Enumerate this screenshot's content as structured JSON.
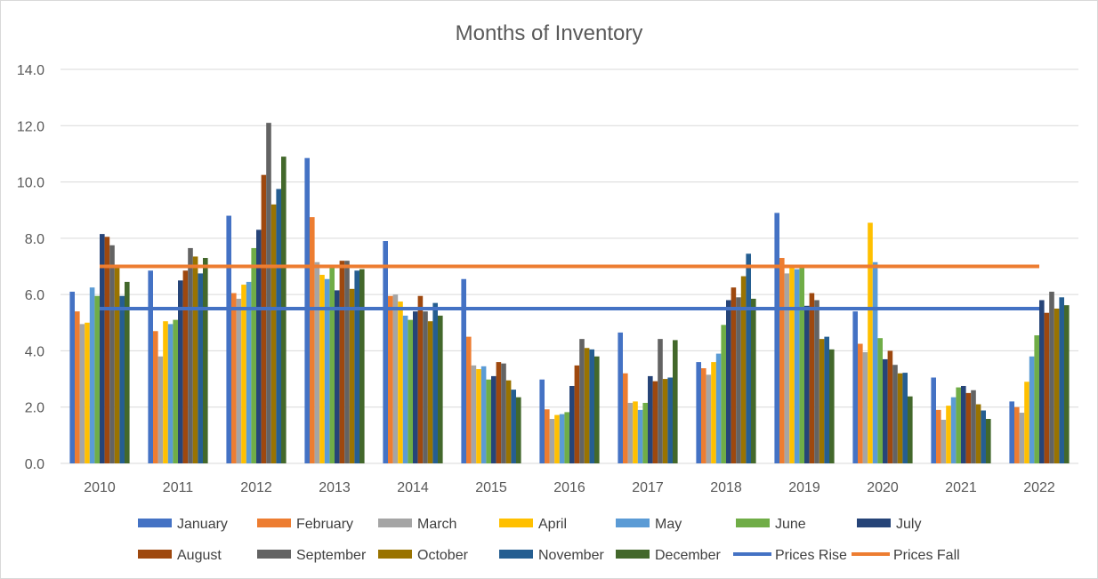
{
  "chart_data": {
    "type": "bar",
    "title": "Months of Inventory",
    "xlabel": "",
    "ylabel": "",
    "ylim": [
      0,
      14
    ],
    "ytick_step": 2,
    "ytick_labels": [
      "0.0",
      "2.0",
      "4.0",
      "6.0",
      "8.0",
      "10.0",
      "12.0",
      "14.0"
    ],
    "grid": true,
    "legend_position": "bottom",
    "categories": [
      "2010",
      "2011",
      "2012",
      "2013",
      "2014",
      "2015",
      "2016",
      "2017",
      "2018",
      "2019",
      "2020",
      "2021",
      "2022"
    ],
    "series": [
      {
        "name": "January",
        "color": "#4472C4",
        "values": [
          6.1,
          6.85,
          8.8,
          10.85,
          7.9,
          6.55,
          2.98,
          4.65,
          3.6,
          8.9,
          5.4,
          3.05,
          2.2
        ]
      },
      {
        "name": "February",
        "color": "#ED7D31",
        "values": [
          5.4,
          4.7,
          6.05,
          8.75,
          5.95,
          4.5,
          1.92,
          3.2,
          3.38,
          7.3,
          4.25,
          1.9,
          2.0
        ]
      },
      {
        "name": "March",
        "color": "#A5A5A5",
        "values": [
          4.95,
          3.8,
          5.85,
          7.15,
          6.0,
          3.48,
          1.58,
          2.15,
          3.15,
          6.75,
          3.95,
          1.55,
          1.8
        ]
      },
      {
        "name": "April",
        "color": "#FFC000",
        "values": [
          5.0,
          5.05,
          6.35,
          6.7,
          5.75,
          3.35,
          1.72,
          2.2,
          3.6,
          7.0,
          8.55,
          2.05,
          2.9
        ]
      },
      {
        "name": "May",
        "color": "#5B9BD5",
        "values": [
          6.25,
          4.95,
          6.45,
          6.55,
          5.25,
          3.45,
          1.75,
          1.9,
          3.9,
          6.9,
          7.15,
          2.35,
          3.8
        ]
      },
      {
        "name": "June",
        "color": "#70AD47",
        "values": [
          5.95,
          5.1,
          7.65,
          6.95,
          5.1,
          2.98,
          1.82,
          2.15,
          4.92,
          6.95,
          4.45,
          2.7,
          4.55
        ]
      },
      {
        "name": "July",
        "color": "#264478",
        "values": [
          8.15,
          6.5,
          8.3,
          6.15,
          5.4,
          3.1,
          2.75,
          3.1,
          5.8,
          5.6,
          3.7,
          2.75,
          5.8
        ]
      },
      {
        "name": "August",
        "color": "#9E480E",
        "values": [
          8.05,
          6.85,
          10.25,
          7.2,
          5.95,
          3.6,
          3.48,
          2.92,
          6.25,
          6.05,
          4.0,
          2.5,
          5.35
        ]
      },
      {
        "name": "September",
        "color": "#636363",
        "values": [
          7.75,
          7.65,
          12.1,
          7.2,
          5.4,
          3.55,
          4.42,
          4.42,
          5.9,
          5.8,
          3.5,
          2.6,
          6.1
        ]
      },
      {
        "name": "October",
        "color": "#997300",
        "values": [
          7.0,
          7.35,
          9.2,
          6.2,
          5.05,
          2.95,
          4.1,
          3.0,
          6.65,
          4.42,
          3.2,
          2.1,
          5.5
        ]
      },
      {
        "name": "November",
        "color": "#255E91",
        "values": [
          5.95,
          6.75,
          9.75,
          6.85,
          5.7,
          2.62,
          4.05,
          3.05,
          7.45,
          4.5,
          3.22,
          1.88,
          5.9
        ]
      },
      {
        "name": "December",
        "color": "#43682B",
        "values": [
          6.45,
          7.3,
          10.9,
          6.9,
          5.25,
          2.35,
          3.8,
          4.38,
          5.85,
          4.05,
          2.38,
          1.58,
          5.62
        ]
      }
    ],
    "reference_lines": [
      {
        "name": "Prices Rise",
        "color": "#4472C4",
        "value": 5.5
      },
      {
        "name": "Prices Fall",
        "color": "#ED7D31",
        "value": 7.0
      }
    ]
  }
}
